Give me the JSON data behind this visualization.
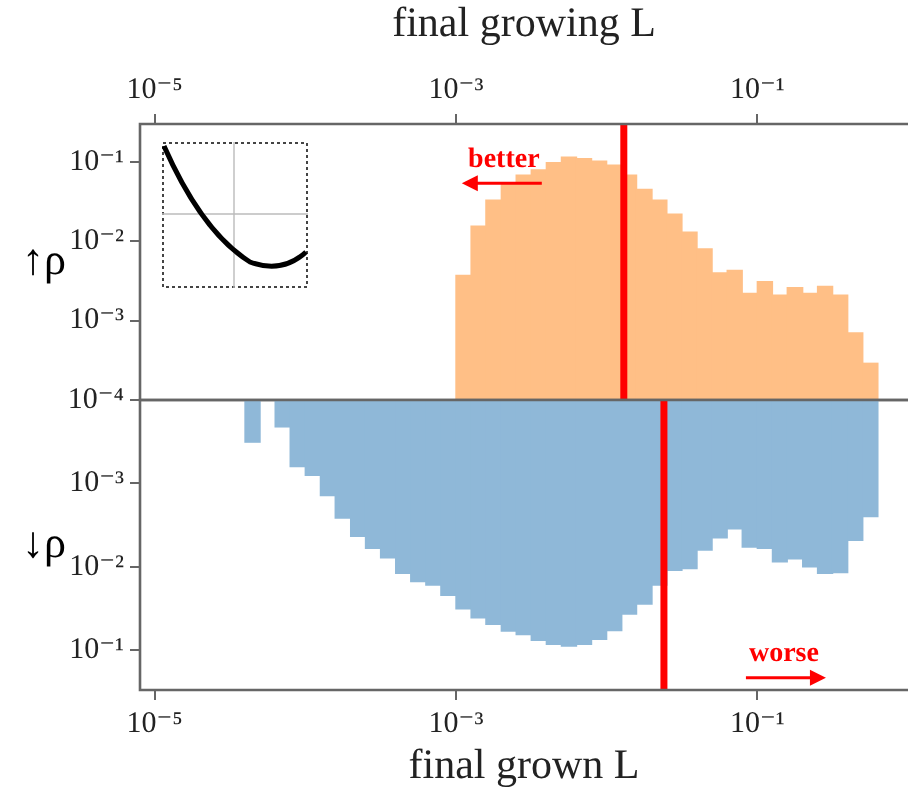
{
  "chart_data": [
    {
      "type": "histogram",
      "xlabel": "final growing L",
      "ylabel": "↑ρ",
      "color": "#ffbf86",
      "log": "xy",
      "grid": false,
      "legend": false,
      "bins": [
        0.001,
        0.00126,
        0.00158,
        0.002,
        0.00251,
        0.00316,
        0.00398,
        0.00501,
        0.00631,
        0.00794,
        0.01,
        0.0126,
        0.0158,
        0.02,
        0.0251,
        0.0316,
        0.0398,
        0.0501,
        0.0631,
        0.0794,
        0.1,
        0.126,
        0.158,
        0.2,
        0.251,
        0.316,
        0.398,
        0.501,
        0.631
      ],
      "values": [
        0.0037,
        0.0155,
        0.033,
        0.054,
        0.068,
        0.079,
        0.098,
        0.115,
        0.11,
        0.102,
        0.091,
        0.068,
        0.045,
        0.033,
        0.022,
        0.013,
        0.008,
        0.004,
        0.0043,
        0.0022,
        0.0031,
        0.0021,
        0.0026,
        0.0022,
        0.0027,
        0.0021,
        0.0007,
        0.00029
      ],
      "xlim": [
        8e-06,
        1
      ],
      "xticks": [
        {
          "value": 1e-05,
          "label": "10⁻⁵"
        },
        {
          "value": 0.001,
          "label": "10⁻³"
        },
        {
          "value": 0.1,
          "label": "10⁻¹"
        }
      ],
      "ylim": [
        0.0001,
        0.3
      ],
      "yticks": [
        {
          "value": 0.0001,
          "label": "10⁻⁴"
        },
        {
          "value": 0.001,
          "label": "10⁻³"
        },
        {
          "value": 0.01,
          "label": "10⁻²"
        },
        {
          "value": 0.1,
          "label": "10⁻¹"
        }
      ],
      "ref_lines": [
        {
          "axis": "x",
          "value": 0.013,
          "color": "#ff0000"
        }
      ],
      "annotations": [
        "better"
      ]
    },
    {
      "type": "histogram",
      "xlabel": "final grown L",
      "ylabel": "↓ρ",
      "color": "#8fb8d8",
      "log": "xy",
      "grid": false,
      "legend": false,
      "bins": [
        3.98e-05,
        5.01e-05,
        6.31e-05,
        7.94e-05,
        0.0001,
        0.000126,
        0.000158,
        0.0002,
        0.000251,
        0.000316,
        0.000398,
        0.000501,
        0.000631,
        0.000794,
        0.001,
        0.00126,
        0.00158,
        0.002,
        0.00251,
        0.00316,
        0.00398,
        0.00501,
        0.00631,
        0.00794,
        0.01,
        0.0126,
        0.0158,
        0.02,
        0.0251,
        0.0316,
        0.0398,
        0.0501,
        0.0631,
        0.0794,
        0.1,
        0.126,
        0.158,
        0.2,
        0.251,
        0.316,
        0.398,
        0.501,
        0.631
      ],
      "values": [
        0.00032,
        null,
        0.00021,
        0.00063,
        0.0008,
        0.0014,
        0.0026,
        0.0043,
        0.006,
        0.0078,
        0.012,
        0.015,
        0.0166,
        0.022,
        0.032,
        0.041,
        0.049,
        0.059,
        0.065,
        0.076,
        0.085,
        0.089,
        0.085,
        0.074,
        0.058,
        0.037,
        0.028,
        0.0166,
        0.011,
        0.0105,
        0.0063,
        0.0045,
        0.0035,
        0.0058,
        0.006,
        0.0087,
        0.008,
        0.01,
        0.012,
        0.0117,
        0.0048,
        0.0025
      ],
      "xlim": [
        8e-06,
        1
      ],
      "xticks": [
        {
          "value": 1e-05,
          "label": "10⁻⁵"
        },
        {
          "value": 0.001,
          "label": "10⁻³"
        },
        {
          "value": 0.1,
          "label": "10⁻¹"
        }
      ],
      "ylim": [
        0.3,
        0.0001
      ],
      "yticks": [
        {
          "value": 0.0001,
          "label": null
        },
        {
          "value": 0.001,
          "label": "10⁻³"
        },
        {
          "value": 0.01,
          "label": "10⁻²"
        },
        {
          "value": 0.1,
          "label": "10⁻¹"
        }
      ],
      "ref_lines": [
        {
          "axis": "x",
          "value": 0.024,
          "color": "#ff0000"
        }
      ],
      "annotations": [
        "worse"
      ]
    }
  ]
}
